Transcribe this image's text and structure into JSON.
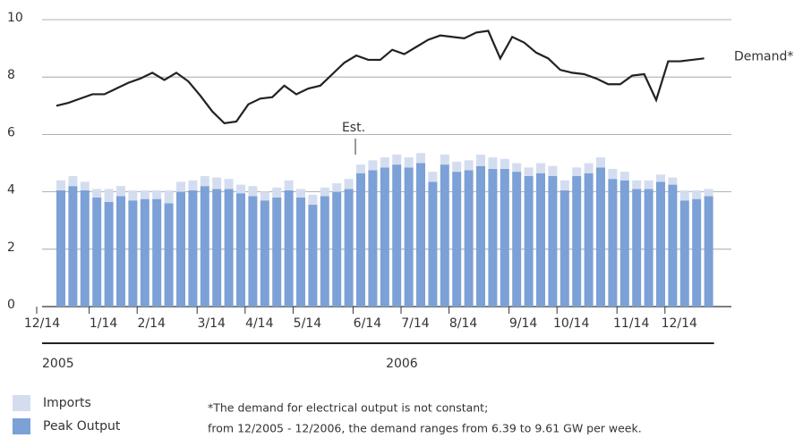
{
  "chart_data": {
    "type": "bar_line",
    "categories": [
      "12/14",
      null,
      null,
      null,
      "1/14",
      null,
      null,
      null,
      "2/14",
      null,
      null,
      null,
      null,
      "3/14",
      null,
      null,
      null,
      "4/14",
      null,
      null,
      null,
      "5/14",
      null,
      null,
      null,
      null,
      "6/14",
      null,
      null,
      null,
      "7/14",
      null,
      null,
      null,
      "8/14",
      null,
      null,
      null,
      null,
      "9/14",
      null,
      null,
      null,
      "10/14",
      null,
      null,
      null,
      null,
      "11/14",
      null,
      null,
      null,
      "12/14",
      null,
      null
    ],
    "series": [
      {
        "name": "Peak Output",
        "color": "#7ba1d6",
        "values": [
          4.05,
          4.2,
          4.05,
          3.8,
          3.65,
          3.85,
          3.7,
          3.75,
          3.75,
          3.6,
          4.0,
          4.05,
          4.2,
          4.1,
          4.1,
          3.95,
          3.85,
          3.7,
          3.8,
          4.05,
          3.8,
          3.55,
          3.85,
          4.0,
          4.1,
          4.65,
          4.75,
          4.85,
          4.95,
          4.85,
          5.0,
          4.35,
          4.95,
          4.7,
          4.75,
          4.9,
          4.8,
          4.8,
          4.7,
          4.55,
          4.65,
          4.55,
          4.05,
          4.55,
          4.65,
          4.85,
          4.45,
          4.4,
          4.1,
          4.1,
          4.35,
          4.25,
          3.7,
          3.75,
          3.85
        ]
      },
      {
        "name": "Imports",
        "color": "#d4ddf0",
        "values": [
          0.35,
          0.35,
          0.3,
          0.3,
          0.45,
          0.35,
          0.35,
          0.3,
          0.3,
          0.45,
          0.35,
          0.35,
          0.35,
          0.4,
          0.35,
          0.3,
          0.35,
          0.3,
          0.35,
          0.35,
          0.3,
          0.35,
          0.3,
          0.3,
          0.35,
          0.3,
          0.35,
          0.35,
          0.35,
          0.35,
          0.35,
          0.35,
          0.35,
          0.35,
          0.35,
          0.4,
          0.4,
          0.35,
          0.3,
          0.3,
          0.35,
          0.35,
          0.35,
          0.3,
          0.35,
          0.35,
          0.35,
          0.3,
          0.3,
          0.3,
          0.25,
          0.25,
          0.35,
          0.3,
          0.25
        ]
      },
      {
        "name": "Demand*",
        "color": "#222222",
        "type": "line",
        "values": [
          7.0,
          7.1,
          7.25,
          7.4,
          7.4,
          7.6,
          7.8,
          7.95,
          8.15,
          7.9,
          8.15,
          7.85,
          7.35,
          6.8,
          6.39,
          6.45,
          7.05,
          7.25,
          7.3,
          7.7,
          7.4,
          7.6,
          7.7,
          8.1,
          8.5,
          8.75,
          8.6,
          8.6,
          8.95,
          8.8,
          9.05,
          9.3,
          9.45,
          9.4,
          9.35,
          9.55,
          9.61,
          8.65,
          9.4,
          9.2,
          8.85,
          8.65,
          8.25,
          8.15,
          8.1,
          7.95,
          7.75,
          7.75,
          8.05,
          8.1,
          7.2,
          8.55,
          8.55,
          8.6,
          8.65
        ]
      }
    ],
    "ylim": [
      0,
      10
    ],
    "yticks": [
      0,
      2,
      4,
      6,
      8,
      10
    ],
    "grid": true,
    "year_labels": [
      {
        "label": "2005",
        "from": 0,
        "to": 2
      },
      {
        "label": "2006",
        "from": 3,
        "to": 54
      }
    ],
    "annotation": {
      "text": "Est.",
      "index": 25
    },
    "footnote": [
      "*The demand for electrical output is not constant;",
      "from 12/2005 - 12/2006, the demand ranges from 6.39 to 9.61 GW per week."
    ]
  }
}
